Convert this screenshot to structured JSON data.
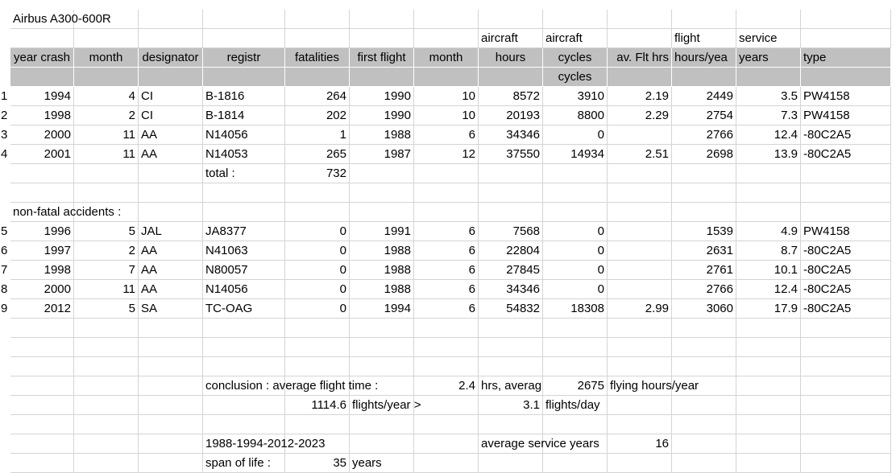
{
  "title": "Airbus A300-600R",
  "header_top": {
    "aircraft_hours": "aircraft",
    "aircraft_cycles": "aircraft",
    "flight": "flight",
    "service": "service"
  },
  "headers": [
    "year crash",
    "month",
    "designator",
    "registr",
    "fatalities",
    "first flight",
    "month",
    "hours",
    "cycles",
    "av. Flt hrs",
    "hours/yea",
    "years",
    "type"
  ],
  "sub_header_cycles": "cycles",
  "crash_rows": [
    {
      "n": "1",
      "year": "1994",
      "month": "4",
      "desig": "CI",
      "reg": "B-1816",
      "fat": "264",
      "ff": "1990",
      "ffm": "10",
      "hours": "8572",
      "cycles": "3910",
      "avflt": "2.19",
      "hy": "2449",
      "years": "3.5",
      "type": "PW4158"
    },
    {
      "n": "2",
      "year": "1998",
      "month": "2",
      "desig": "CI",
      "reg": "B-1814",
      "fat": "202",
      "ff": "1990",
      "ffm": "10",
      "hours": "20193",
      "cycles": "8800",
      "avflt": "2.29",
      "hy": "2754",
      "years": "7.3",
      "type": "PW4158"
    },
    {
      "n": "3",
      "year": "2000",
      "month": "11",
      "desig": "AA",
      "reg": "N14056",
      "fat": "1",
      "ff": "1988",
      "ffm": "6",
      "hours": "34346",
      "cycles": "0",
      "avflt": "",
      "hy": "2766",
      "years": "12.4",
      "type": "-80C2A5"
    },
    {
      "n": "4",
      "year": "2001",
      "month": "11",
      "desig": "AA",
      "reg": "N14053",
      "fat": "265",
      "ff": "1987",
      "ffm": "12",
      "hours": "37550",
      "cycles": "14934",
      "avflt": "2.51",
      "hy": "2698",
      "years": "13.9",
      "type": "-80C2A5"
    }
  ],
  "total_label": "total :",
  "total_value": "732",
  "nonfatal_label": "non-fatal accidents :",
  "nonfatal_rows": [
    {
      "n": "5",
      "year": "1996",
      "month": "5",
      "desig": "JAL",
      "reg": "JA8377",
      "fat": "0",
      "ff": "1991",
      "ffm": "6",
      "hours": "7568",
      "cycles": "0",
      "avflt": "",
      "hy": "1539",
      "years": "4.9",
      "type": "PW4158"
    },
    {
      "n": "6",
      "year": "1997",
      "month": "2",
      "desig": "AA",
      "reg": "N41063",
      "fat": "0",
      "ff": "1988",
      "ffm": "6",
      "hours": "22804",
      "cycles": "0",
      "avflt": "",
      "hy": "2631",
      "years": "8.7",
      "type": "-80C2A5"
    },
    {
      "n": "7",
      "year": "1998",
      "month": "7",
      "desig": "AA",
      "reg": "N80057",
      "fat": "0",
      "ff": "1988",
      "ffm": "6",
      "hours": "27845",
      "cycles": "0",
      "avflt": "",
      "hy": "2761",
      "years": "10.1",
      "type": "-80C2A5"
    },
    {
      "n": "8",
      "year": "2000",
      "month": "11",
      "desig": "AA",
      "reg": "N14056",
      "fat": "0",
      "ff": "1988",
      "ffm": "6",
      "hours": "34346",
      "cycles": "0",
      "avflt": "",
      "hy": "2766",
      "years": "12.4",
      "type": "-80C2A5"
    },
    {
      "n": "9",
      "year": "2012",
      "month": "5",
      "desig": "SA",
      "reg": "TC-OAG",
      "fat": "0",
      "ff": "1994",
      "ffm": "6",
      "hours": "54832",
      "cycles": "18308",
      "avflt": "2.99",
      "hy": "3060",
      "years": "17.9",
      "type": "-80C2A5"
    }
  ],
  "conclusion": {
    "label": "conclusion : average flight time :",
    "avg_flight_time": "2.4",
    "hrs_average": "hrs, averag",
    "flying_hours": "2675",
    "flying_hours_label": "flying hours/year",
    "flights_year": "1114.6",
    "flights_year_label": "flights/year >",
    "flights_day": "3.1",
    "flights_day_label": "flights/day"
  },
  "years_range": "1988-1994-2012-2023",
  "average_service_label": "average service years",
  "average_service_value": "16",
  "span_label": "span of life :",
  "span_value": "35",
  "span_unit": "years"
}
